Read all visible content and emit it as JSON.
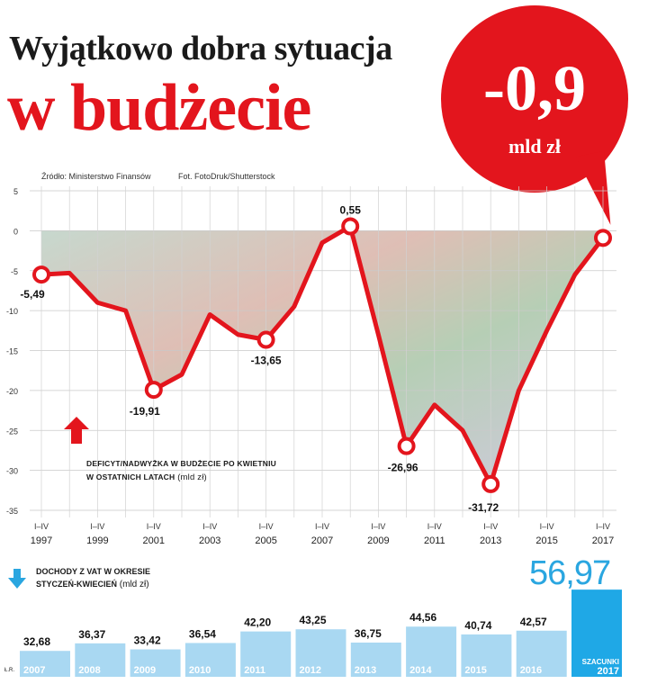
{
  "header": {
    "title_line1": "Wyjątkowo dobra sytuacja",
    "title_line2": "w budżecie"
  },
  "badge": {
    "value": "-0,9",
    "unit": "mld zł"
  },
  "source": {
    "text": "Źródło: Ministerstwo Finansów",
    "photo": "Fot. FotoDruk/Shutterstock"
  },
  "colors": {
    "accent": "#e3151d",
    "vat": "#2aa6e0",
    "vat_bar": "#a9d8f2",
    "vat_bar_est": "#1fa8e6"
  },
  "legend": {
    "line1": "Deficyt/nadwyżka w budżecie po kwietniu",
    "line2": "w ostatnich latach",
    "unit": "(mld zł)"
  },
  "vat": {
    "title_line1": "Dochody z VAT w okresie",
    "title_line2": "styczeń-kwiecień",
    "unit": "(mld zł)",
    "highlight": "56,97"
  },
  "credit": "Ł.R.",
  "chart_data": [
    {
      "type": "line",
      "x_ticks": [
        {
          "period": "I–IV",
          "year": "1997"
        },
        {
          "period": "I–IV",
          "year": "1999"
        },
        {
          "period": "I–IV",
          "year": "2001"
        },
        {
          "period": "I–IV",
          "year": "2003"
        },
        {
          "period": "I–IV",
          "year": "2005"
        },
        {
          "period": "I–IV",
          "year": "2007"
        },
        {
          "period": "I–IV",
          "year": "2009"
        },
        {
          "period": "I–IV",
          "year": "2011"
        },
        {
          "period": "I–IV",
          "year": "2013"
        },
        {
          "period": "I–IV",
          "year": "2015"
        },
        {
          "period": "I–IV",
          "year": "2017"
        }
      ],
      "x": [
        1997,
        1998,
        1999,
        2000,
        2001,
        2002,
        2003,
        2004,
        2005,
        2006,
        2007,
        2008,
        2009,
        2010,
        2011,
        2012,
        2013,
        2014,
        2015,
        2016,
        2017
      ],
      "y": [
        -5.49,
        -5.3,
        -9,
        -10,
        -19.91,
        -18,
        -10.5,
        -13,
        -13.65,
        -9.5,
        -1.5,
        0.55,
        -13,
        -26.96,
        -21.8,
        -25,
        -31.72,
        -20,
        -12.5,
        -5.5,
        -0.9
      ],
      "ylim": [
        -35,
        5
      ],
      "y_ticks": [
        "5",
        "0",
        "-5",
        "-10",
        "-15",
        "-20",
        "-25",
        "-30",
        "-35"
      ],
      "point_labels": [
        {
          "x": 1997,
          "text": "-5,49"
        },
        {
          "x": 2001,
          "text": "-19,91"
        },
        {
          "x": 2005,
          "text": "-13,65"
        },
        {
          "x": 2008,
          "text": "0,55"
        },
        {
          "x": 2010,
          "text": "-26,96"
        },
        {
          "x": 2013,
          "text": "-31,72"
        }
      ],
      "grid": true
    },
    {
      "type": "bar",
      "categories": [
        "2007",
        "2008",
        "2009",
        "2010",
        "2011",
        "2012",
        "2013",
        "2014",
        "2015",
        "2016",
        "Szacunki 2017"
      ],
      "values": [
        32.68,
        36.37,
        33.42,
        36.54,
        42.2,
        43.25,
        36.75,
        44.56,
        40.74,
        42.57,
        56.97
      ],
      "labels": [
        "32,68",
        "36,37",
        "33,42",
        "36,54",
        "42,20",
        "43,25",
        "36,75",
        "44,56",
        "40,74",
        "42,57",
        ""
      ],
      "estimate_label_line1": "SZACUNKI",
      "estimate_label_line2": "2017"
    }
  ]
}
